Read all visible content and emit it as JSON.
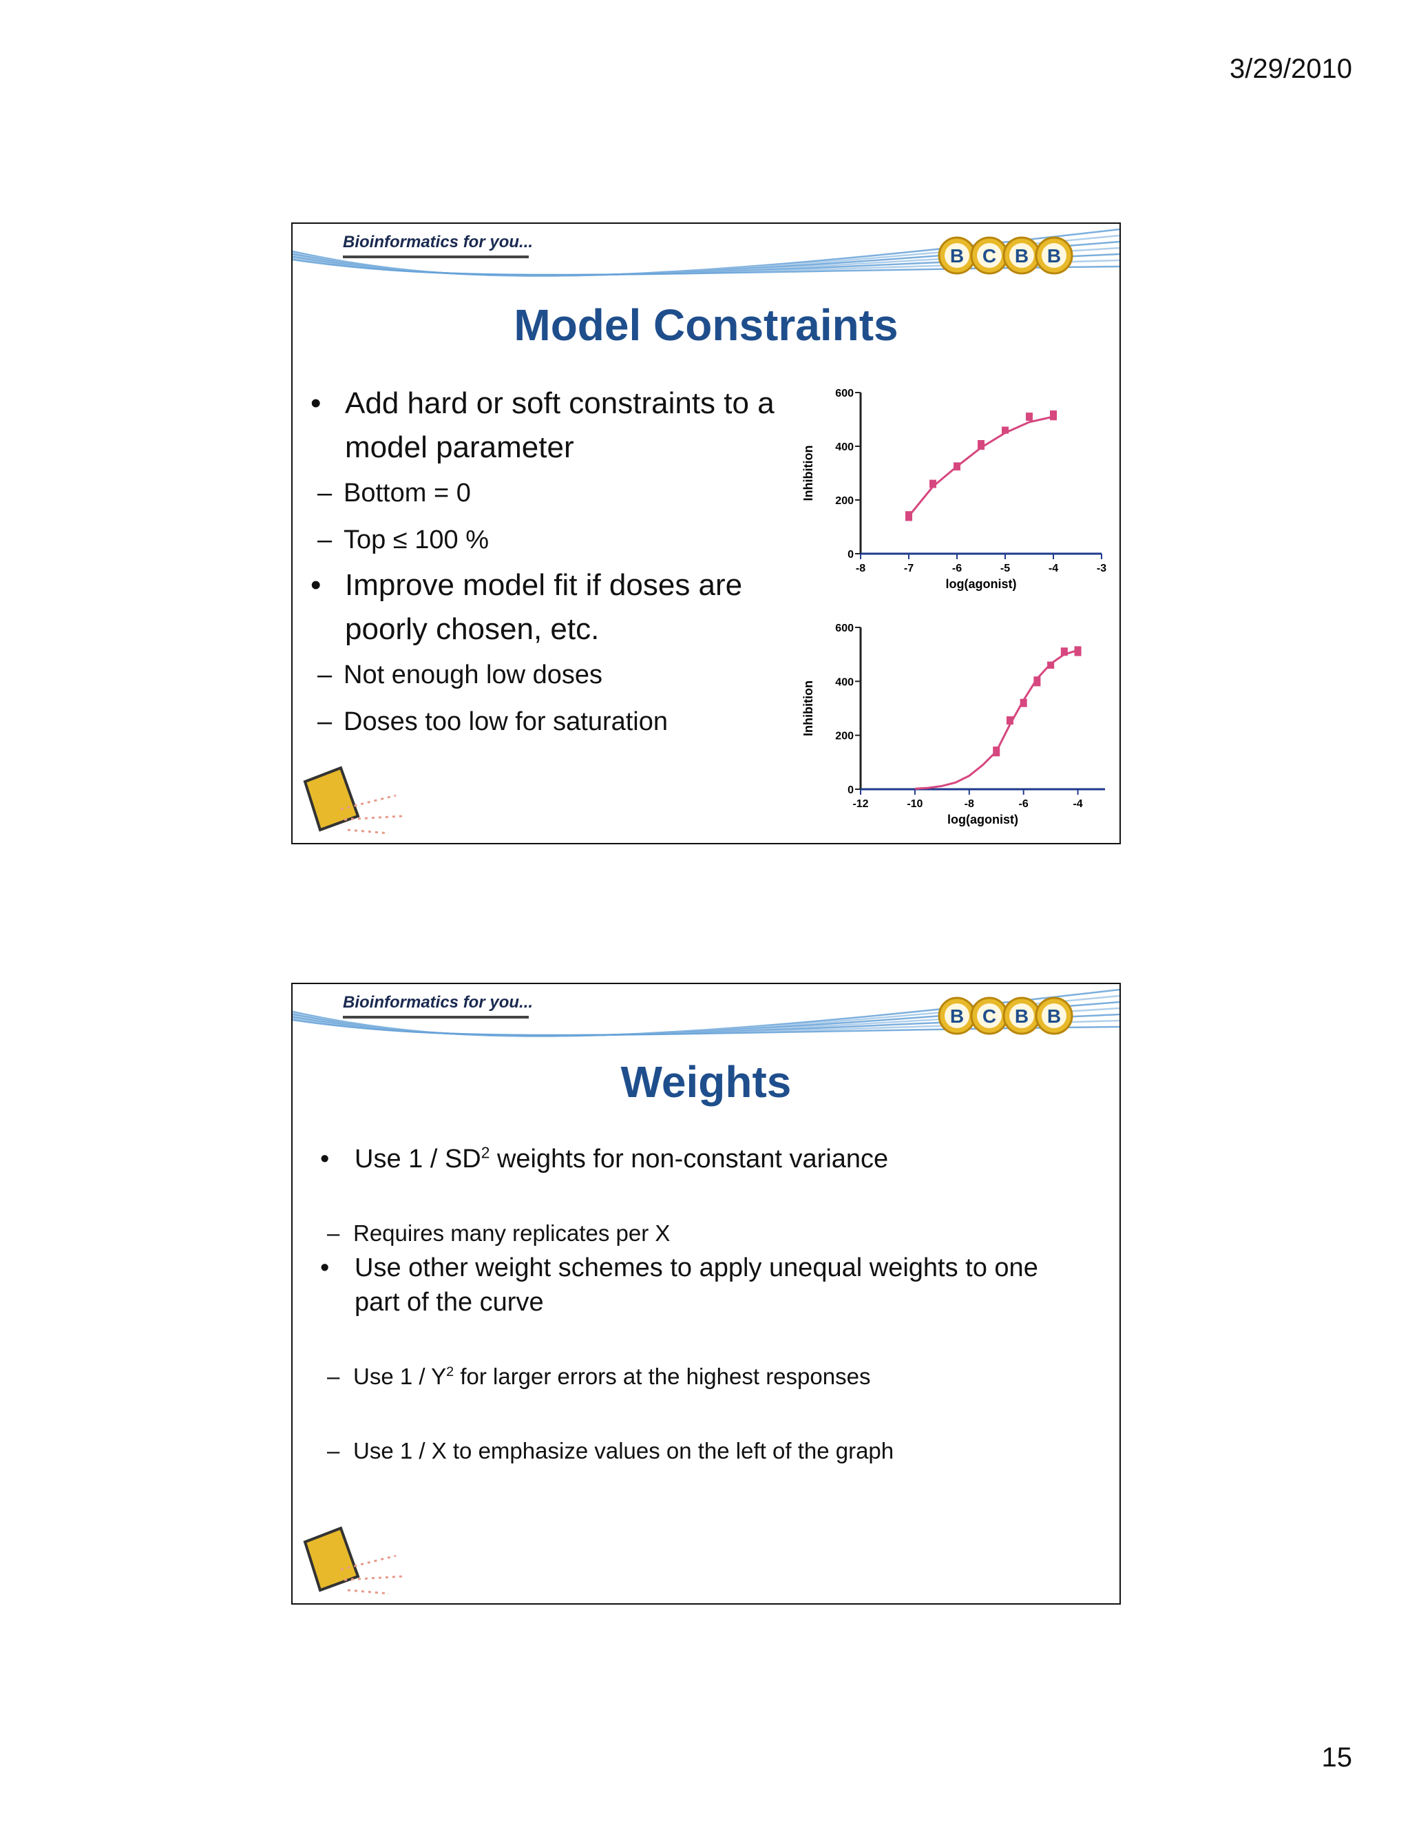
{
  "header": {
    "date": "3/29/2010"
  },
  "footer": {
    "page_number": "15"
  },
  "slides": [
    {
      "banner": {
        "title": "Bioinformatics for you...",
        "logo": [
          "B",
          "C",
          "B",
          "B"
        ]
      },
      "title": "Model Constraints",
      "bullets": [
        {
          "text": "Add hard or soft constraints to a model parameter",
          "subs": [
            {
              "text": "Bottom = 0"
            },
            {
              "text": "Top ≤ 100 %"
            }
          ]
        },
        {
          "text": "Improve model fit if doses are poorly chosen, etc.",
          "subs": [
            {
              "text": "Not enough low doses"
            },
            {
              "text": "Doses too low for saturation"
            }
          ]
        }
      ],
      "charts": [
        {
          "type": "scatter",
          "color": "#d6477f",
          "xlabel": "log(agonist)",
          "ylabel": "Inhibition",
          "x": [
            -7,
            -6.5,
            -6,
            -5.5,
            -5,
            -4.5,
            -4
          ],
          "values": [
            140,
            260,
            325,
            405,
            460,
            510,
            515
          ],
          "errors": [
            15,
            12,
            12,
            15,
            10,
            12,
            15
          ],
          "fit": {
            "x": [
              -7,
              -6.5,
              -6,
              -5.5,
              -5,
              -4.5,
              -4
            ],
            "values": [
              140,
              250,
              325,
              395,
              450,
              490,
              510
            ]
          },
          "xlim": [
            -8,
            -3
          ],
          "xticks": [
            -8,
            -7,
            -6,
            -5,
            -4,
            -3
          ],
          "ylim": [
            0,
            600
          ],
          "yticks": [
            0,
            200,
            400,
            600
          ]
        },
        {
          "type": "scatter",
          "color": "#d6477f",
          "xlabel": "log(agonist)",
          "ylabel": "Inhibition",
          "x": [
            -7,
            -6.5,
            -6,
            -5.5,
            -5,
            -4.5,
            -4
          ],
          "values": [
            140,
            255,
            320,
            400,
            460,
            510,
            512
          ],
          "errors": [
            15,
            12,
            12,
            15,
            10,
            12,
            15
          ],
          "fit": {
            "x": [
              -10,
              -9.5,
              -9,
              -8.5,
              -8,
              -7.5,
              -7,
              -6.5,
              -6,
              -5.5,
              -5,
              -4.5,
              -4
            ],
            "values": [
              2,
              5,
              12,
              25,
              50,
              90,
              140,
              240,
              330,
              410,
              465,
              500,
              515
            ]
          },
          "xlim": [
            -12,
            -3
          ],
          "xticks": [
            -12,
            -10,
            -8,
            -6,
            -4
          ],
          "ylim": [
            0,
            600
          ],
          "yticks": [
            0,
            200,
            400,
            600
          ]
        }
      ]
    },
    {
      "banner": {
        "title": "Bioinformatics for you...",
        "logo": [
          "B",
          "C",
          "B",
          "B"
        ]
      },
      "title": "Weights",
      "bullets": [
        {
          "text": "Use 1 / SD",
          "sup": "2",
          "after": " weights for non-constant variance",
          "subs": [
            {
              "text": "Requires many replicates per X"
            }
          ]
        },
        {
          "text": "Use other weight schemes to apply unequal weights to one part of the curve",
          "subs": [
            {
              "text": "Use 1 / Y",
              "sup": "2",
              "after": " for larger errors at the highest responses"
            },
            {
              "text": "Use 1 / X to emphasize values on the left of the graph"
            }
          ]
        }
      ]
    }
  ]
}
